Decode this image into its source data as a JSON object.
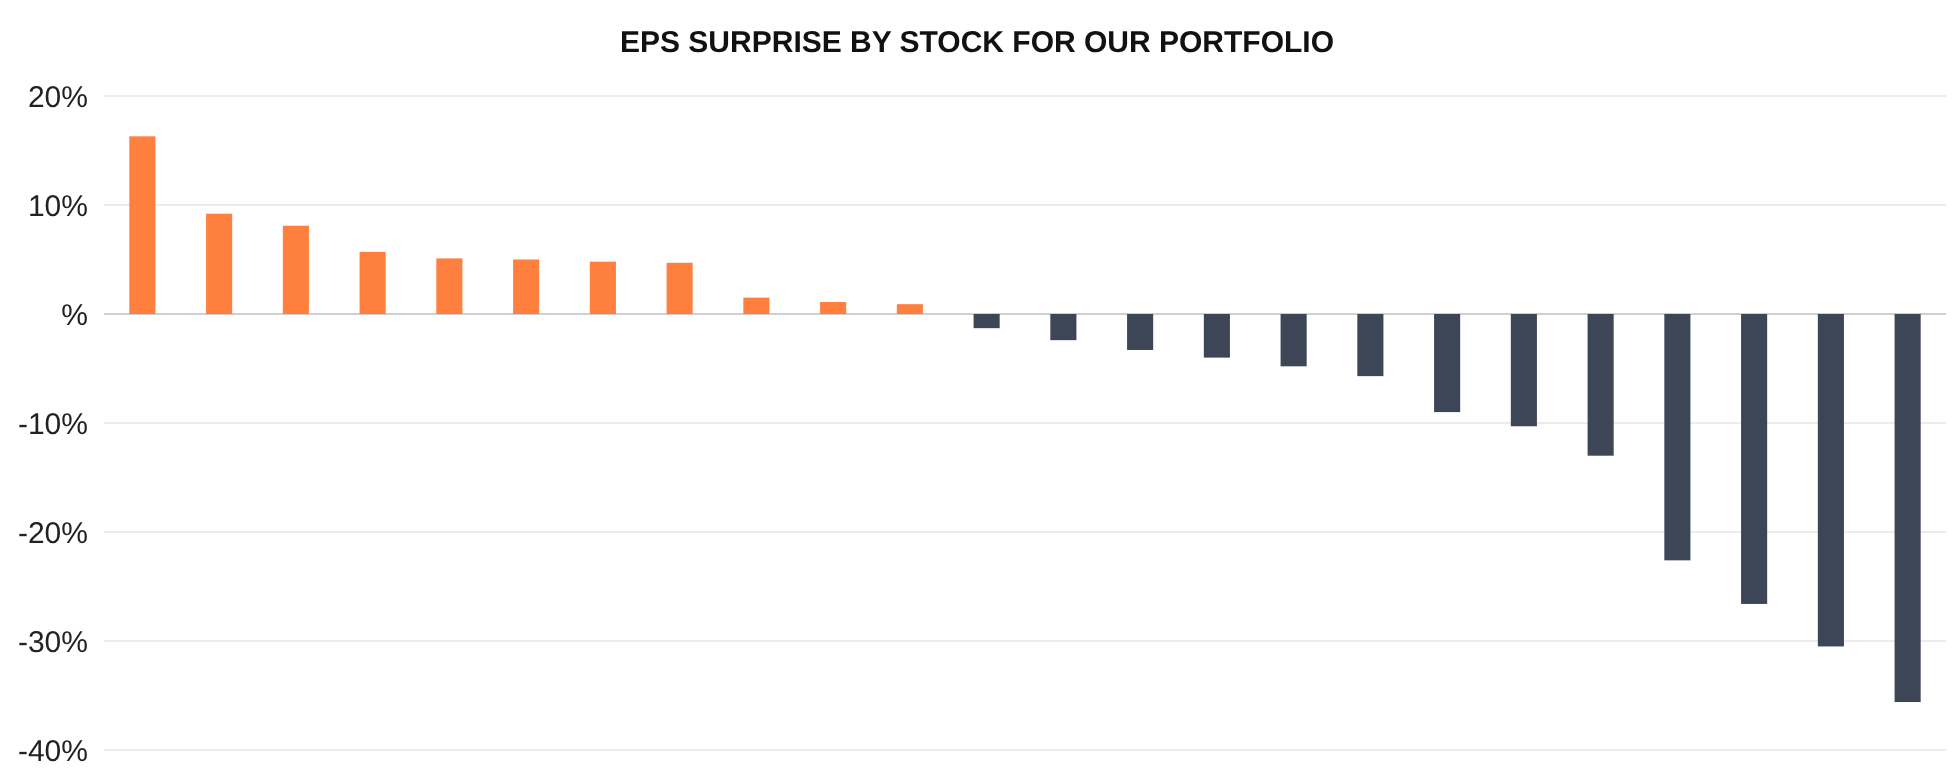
{
  "chart_data": {
    "type": "bar",
    "title": "EPS SURPRISE BY STOCK FOR OUR PORTFOLIO",
    "categories": [
      null,
      null,
      null,
      null,
      null,
      null,
      null,
      null,
      null,
      null,
      null,
      null,
      null,
      null,
      null,
      null,
      null,
      null,
      null,
      null,
      null,
      null,
      null,
      null
    ],
    "values": [
      16.3,
      9.2,
      8.1,
      5.7,
      5.1,
      5.0,
      4.8,
      4.7,
      1.5,
      1.1,
      0.9,
      -1.3,
      -2.4,
      -3.3,
      -4.0,
      -4.8,
      -5.7,
      -9.0,
      -10.3,
      -13.0,
      -22.6,
      -26.6,
      -30.5,
      -35.6
    ],
    "colors": [
      "#ff7f3f",
      "#ff7f3f",
      "#ff7f3f",
      "#ff7f3f",
      "#ff7f3f",
      "#ff7f3f",
      "#ff7f3f",
      "#ff7f3f",
      "#ff7f3f",
      "#ff7f3f",
      "#ff7f3f",
      "#3d4656",
      "#3d4656",
      "#3d4656",
      "#3d4656",
      "#3d4656",
      "#3d4656",
      "#3d4656",
      "#3d4656",
      "#3d4656",
      "#3d4656",
      "#3d4656",
      "#3d4656",
      "#3d4656"
    ],
    "ylim": [
      -40,
      20
    ],
    "yticks": [
      {
        "value": -40,
        "label": "-40%"
      },
      {
        "value": -30,
        "label": "-30%"
      },
      {
        "value": -20,
        "label": "-20%"
      },
      {
        "value": -10,
        "label": "-10%"
      },
      {
        "value": 0,
        "label": "%"
      },
      {
        "value": 10,
        "label": "10%"
      },
      {
        "value": 20,
        "label": "20%"
      }
    ],
    "grid": "y"
  }
}
